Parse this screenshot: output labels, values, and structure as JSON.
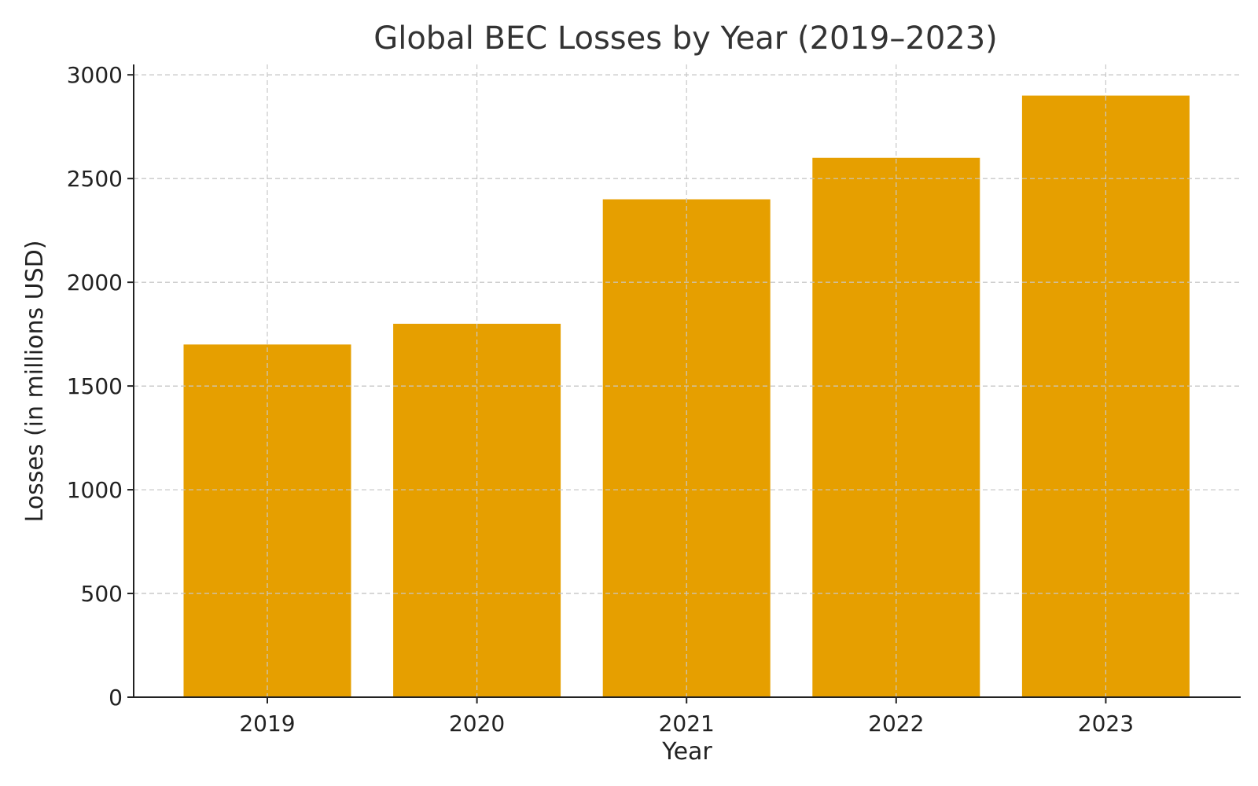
{
  "chart_data": {
    "type": "bar",
    "title": "Global BEC Losses by Year (2019–2023)",
    "xlabel": "Year",
    "ylabel": "Losses (in millions USD)",
    "categories": [
      "2019",
      "2020",
      "2021",
      "2022",
      "2023"
    ],
    "values": [
      1700,
      1800,
      2400,
      2600,
      2900
    ],
    "ylim": [
      0,
      3050
    ],
    "yticks": [
      0,
      500,
      1000,
      1500,
      2000,
      2500,
      3000
    ],
    "grid": true,
    "bar_color": "#E69F00"
  }
}
